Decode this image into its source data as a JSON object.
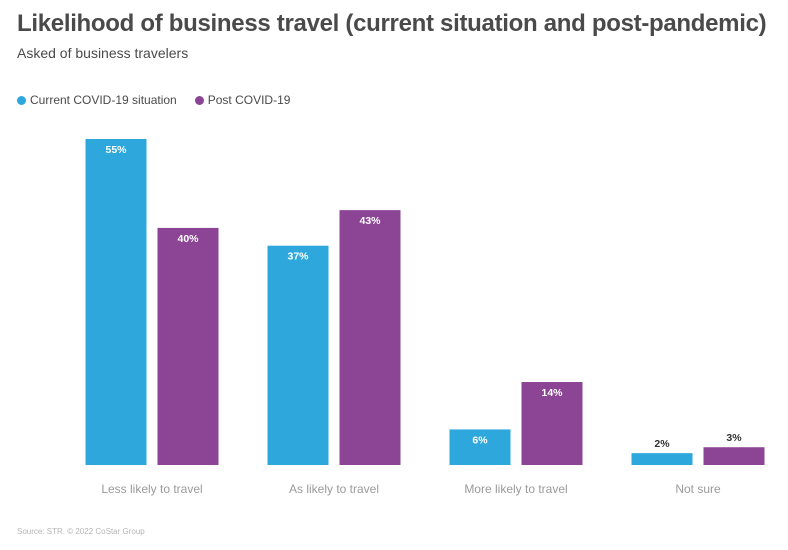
{
  "header": {
    "title": "Likelihood of business travel (current situation and post-pandemic)",
    "subtitle": "Asked of business travelers"
  },
  "legend": {
    "items": [
      {
        "label": "Current COVID-19 situation",
        "color": "#2ea8dc"
      },
      {
        "label": "Post COVID-19",
        "color": "#8b4594"
      }
    ]
  },
  "footer": {
    "source": "Source: STR. © 2022 CoStar Group"
  },
  "chart_data": {
    "type": "bar",
    "categories": [
      "Less likely to travel",
      "As likely to travel",
      "More likely to travel",
      "Not sure"
    ],
    "series": [
      {
        "name": "Current COVID-19 situation",
        "values": [
          55,
          37,
          6,
          2
        ],
        "labels": [
          "55%",
          "37%",
          "6%",
          "2%"
        ],
        "color": "#2ea8dc"
      },
      {
        "name": "Post COVID-19",
        "values": [
          40,
          43,
          14,
          3
        ],
        "labels": [
          "40%",
          "43%",
          "14%",
          "3%"
        ],
        "color": "#8b4594"
      }
    ],
    "ylim": [
      0,
      55
    ],
    "grid": false,
    "legend_position": "top-left"
  }
}
